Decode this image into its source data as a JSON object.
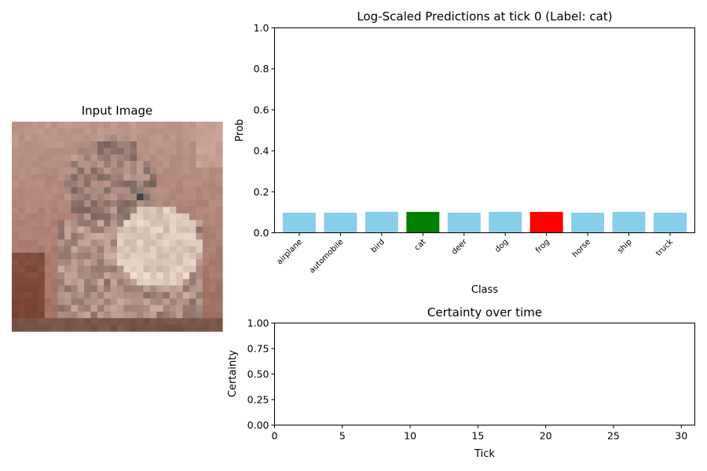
{
  "chart_data": [
    {
      "type": "image",
      "title": "Input Image"
    },
    {
      "type": "bar",
      "title": "Log-Scaled Predictions at tick 0 (Label: cat)",
      "xlabel": "Class",
      "ylabel": "Prob",
      "ylim": [
        0,
        1
      ],
      "yticks": [
        "0.0",
        "0.2",
        "0.4",
        "0.6",
        "0.8",
        "1.0"
      ],
      "categories": [
        "airplane",
        "automobile",
        "bird",
        "cat",
        "deer",
        "dog",
        "frog",
        "horse",
        "ship",
        "truck"
      ],
      "values": [
        0.098,
        0.098,
        0.102,
        0.102,
        0.098,
        0.102,
        0.102,
        0.098,
        0.102,
        0.098
      ],
      "colors": [
        "#87ceeb",
        "#87ceeb",
        "#87ceeb",
        "#008000",
        "#87ceeb",
        "#87ceeb",
        "#ff0000",
        "#87ceeb",
        "#87ceeb",
        "#87ceeb"
      ],
      "grid": false
    },
    {
      "type": "line",
      "title": "Certainty over time",
      "xlabel": "Tick",
      "ylabel": "Certainty",
      "xlim": [
        0,
        31
      ],
      "ylim": [
        0,
        1
      ],
      "xticks": [
        0,
        5,
        10,
        15,
        20,
        25,
        30
      ],
      "yticks": [
        "0.00",
        "0.25",
        "0.50",
        "0.75",
        "1.00"
      ],
      "series": [],
      "grid": false
    }
  ]
}
